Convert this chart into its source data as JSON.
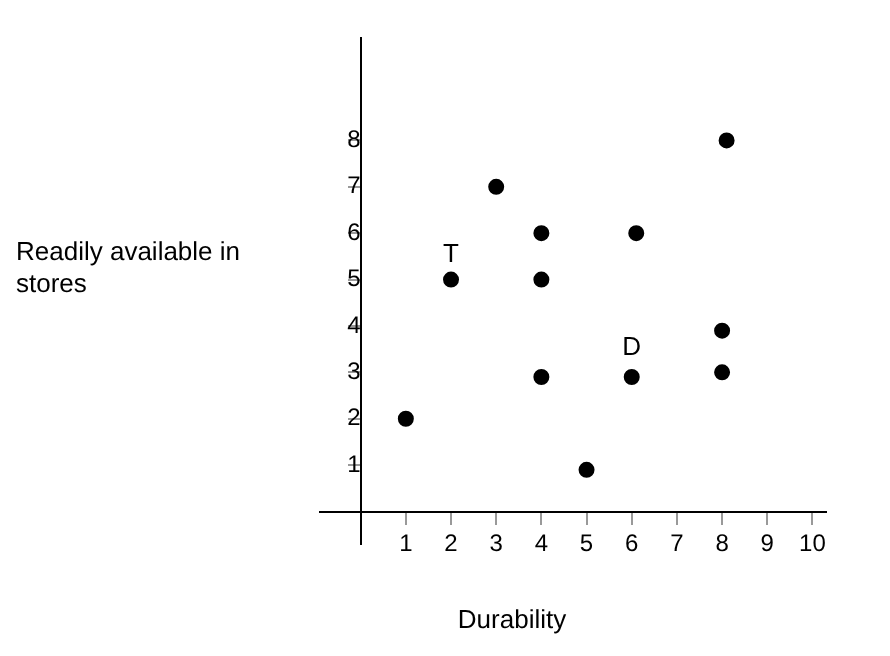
{
  "chart_data": {
    "type": "scatter",
    "xlabel": "Durability",
    "ylabel": "Readily available in stores",
    "x": [
      1,
      2,
      3,
      4,
      4,
      4,
      5,
      6.1,
      6,
      8.1,
      8,
      8
    ],
    "series": [
      {
        "color": "#000000",
        "values": [
          2,
          5,
          7,
          6,
          5,
          2.9,
          0.9,
          6,
          2.9,
          8,
          3.9,
          3
        ]
      }
    ],
    "xlim": [
      -0.9,
      10.3
    ],
    "ylim": [
      -0.7,
      10.2
    ],
    "xticks": [
      1,
      2,
      3,
      4,
      5,
      6,
      7,
      8,
      9,
      10
    ],
    "yticks": [
      1,
      2,
      3,
      4,
      5,
      6,
      7,
      8
    ],
    "annotations": [
      {
        "text": "T",
        "x": 2,
        "y": 5
      },
      {
        "text": "D",
        "x": 6,
        "y": 3
      }
    ],
    "grid": false,
    "legend": false,
    "marker": "circle"
  }
}
